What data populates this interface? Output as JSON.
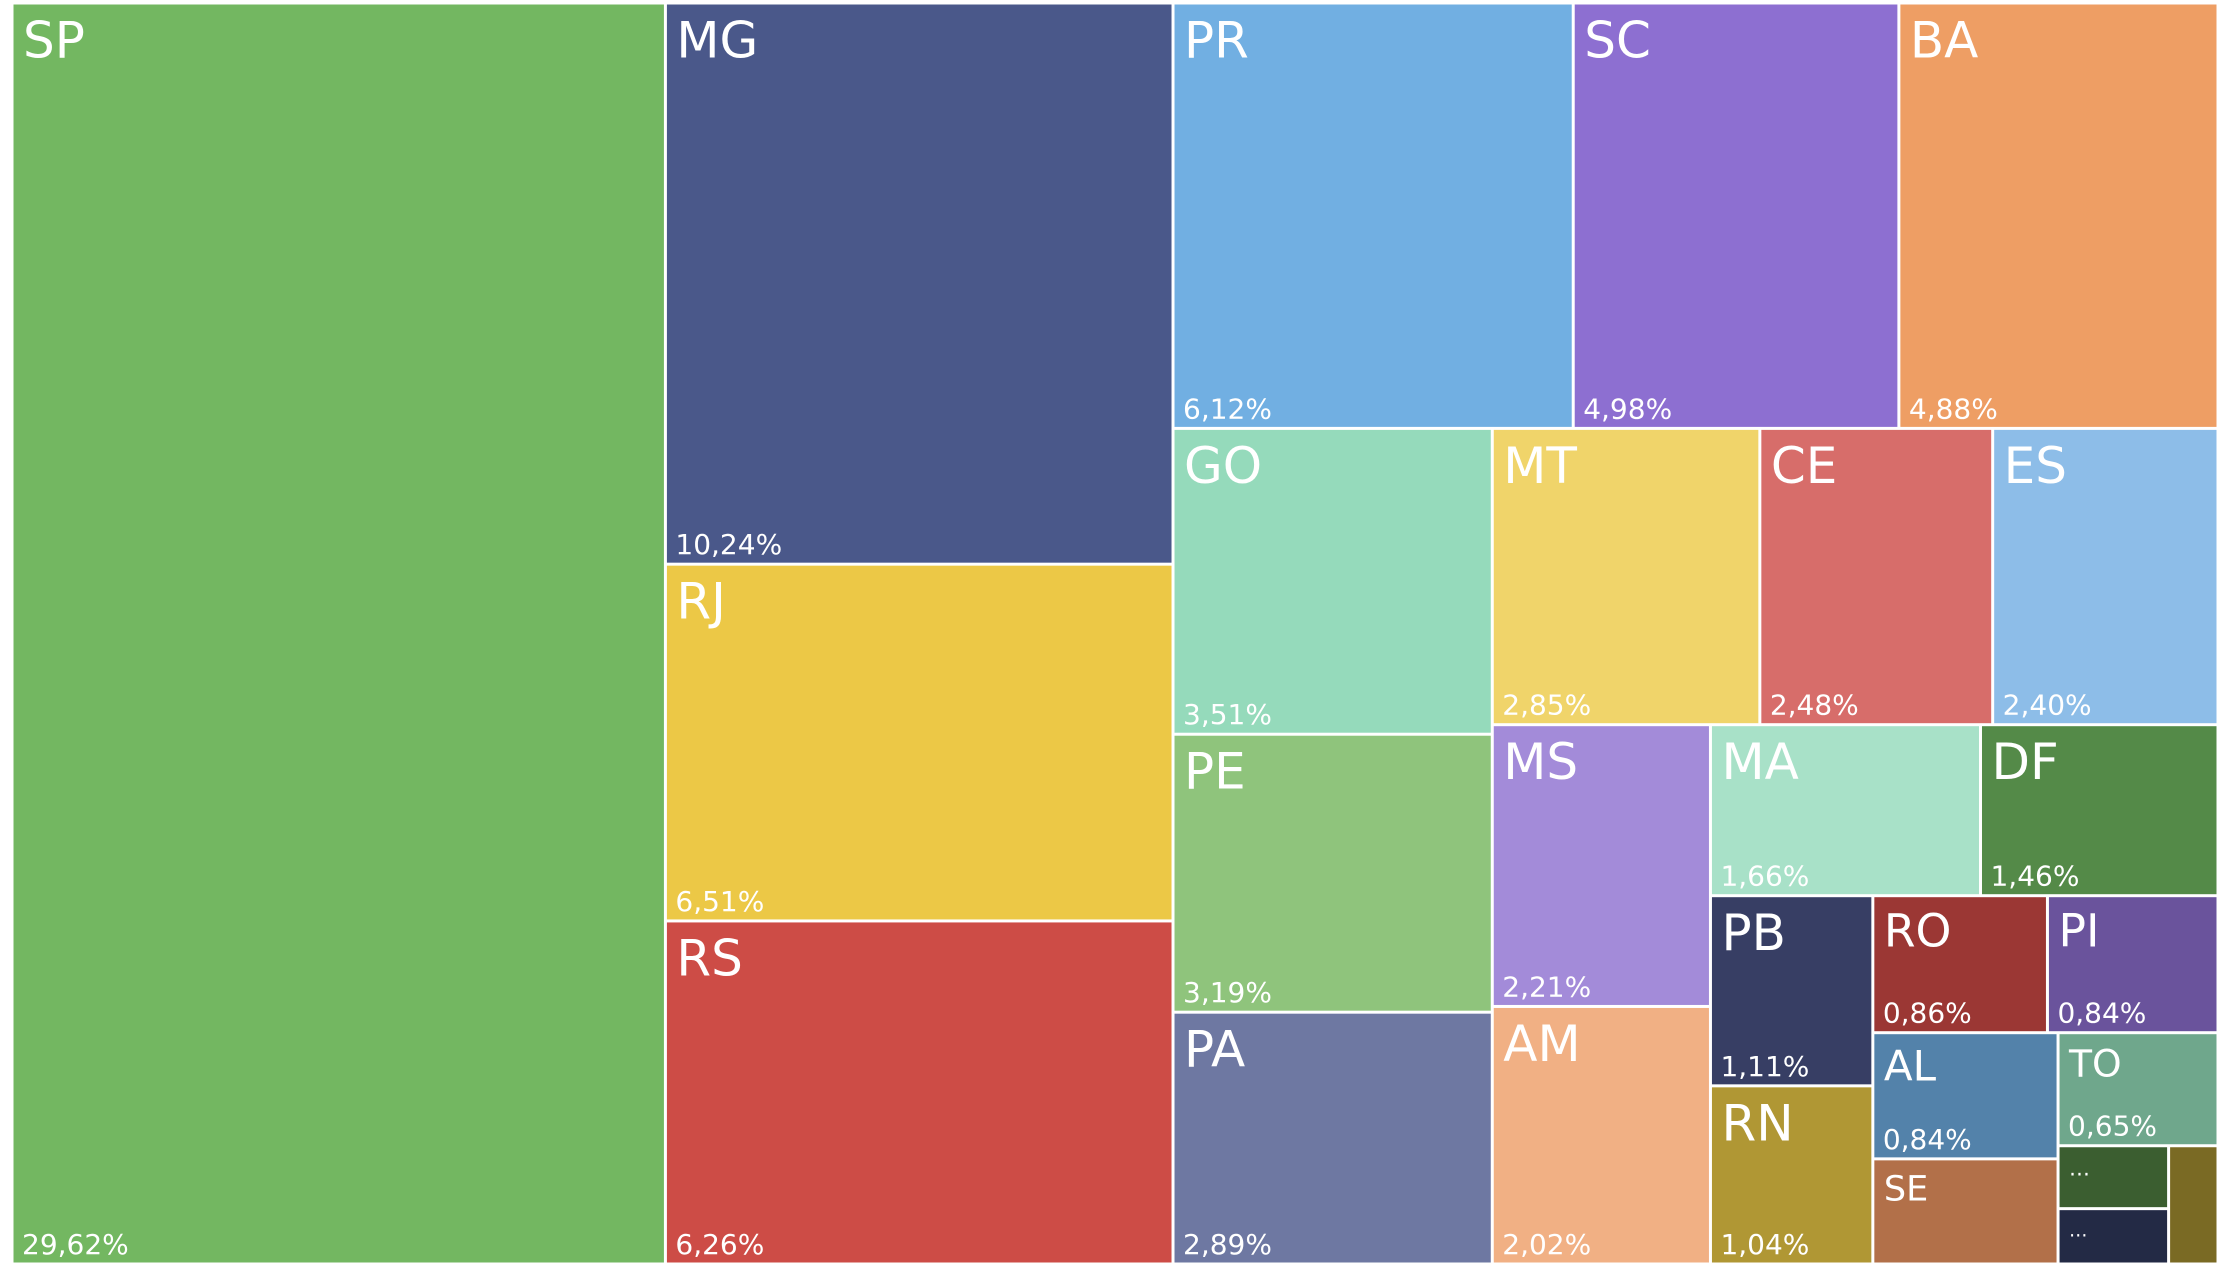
{
  "chart_data": {
    "type": "treemap",
    "categories": [
      "SP",
      "MG",
      "RJ",
      "RS",
      "PR",
      "SC",
      "BA",
      "GO",
      "PE",
      "PA",
      "MT",
      "CE",
      "ES",
      "MS",
      "AM",
      "MA",
      "DF",
      "PB",
      "RN",
      "RO",
      "PI",
      "AL",
      "SE",
      "TO",
      "…",
      "…",
      null
    ],
    "values": [
      29.62,
      10.24,
      6.51,
      6.26,
      6.12,
      4.98,
      4.88,
      3.51,
      3.19,
      2.89,
      2.85,
      2.48,
      2.4,
      2.21,
      2.02,
      1.66,
      1.46,
      1.11,
      1.04,
      0.86,
      0.84,
      0.84,
      0.7,
      0.65,
      0.25,
      0.22,
      0.21
    ],
    "value_labels": [
      "29,62%",
      "10,24%",
      "6,51%",
      "6,26%",
      "6,12%",
      "4,98%",
      "4,88%",
      "3,51%",
      "3,19%",
      "2,89%",
      "2,85%",
      "2,48%",
      "2,40%",
      "2,21%",
      "2,02%",
      "1,66%",
      "1,46%",
      "1,11%",
      "1,04%",
      "0,86%",
      "0,84%",
      "0,84%",
      null,
      "0,65%",
      null,
      null,
      null
    ],
    "colors": [
      "#73b761",
      "#4a588a",
      "#ecc846",
      "#cd4c46",
      "#71afe2",
      "#8d6fd1",
      "#ee9e64",
      "#95dabb",
      "#8fc47c",
      "#6e78a2",
      "#f0d46a",
      "#d76d6a",
      "#8dbde8",
      "#a38bd9",
      "#f1b084",
      "#a8e1c8",
      "#548a48",
      "#373e64",
      "#b09734",
      "#9b3734",
      "#6a539c",
      "#5382aa",
      "#b27049",
      "#6fa78c",
      "#3b5e30",
      "#232a45",
      "#7a6a24"
    ]
  }
}
